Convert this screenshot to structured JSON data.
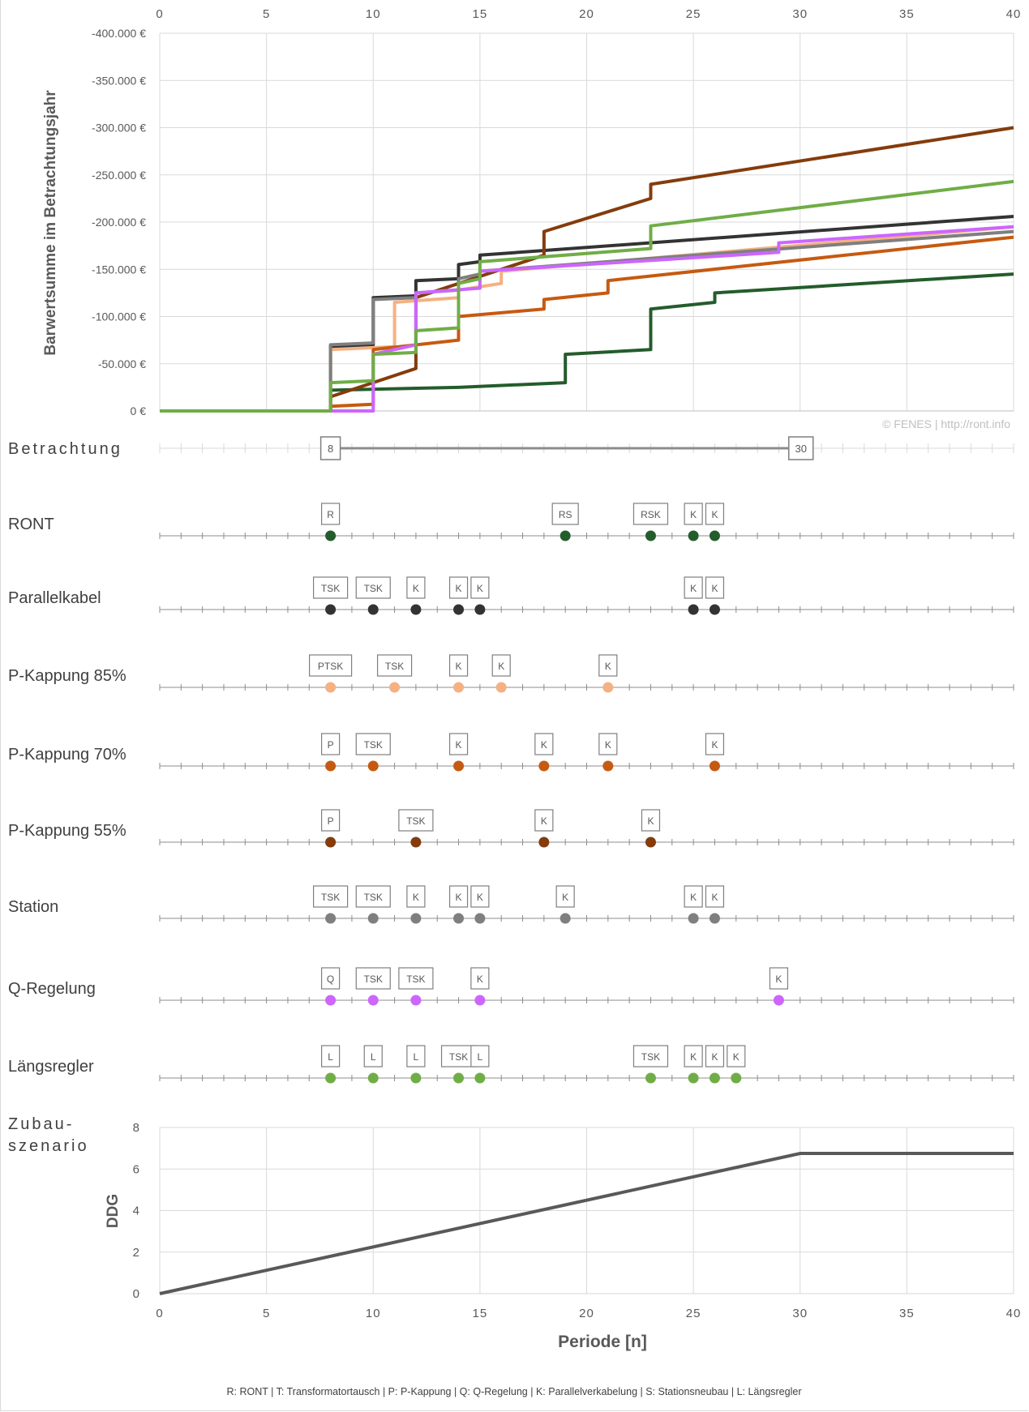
{
  "chart_data": [
    {
      "type": "line",
      "ylabel": "Barwertsumme im Betrachtungsjahr",
      "x_ticks": [
        "0",
        "5",
        "10",
        "15",
        "20",
        "25",
        "30",
        "35",
        "40"
      ],
      "y_ticks": [
        "0 €",
        "-50.000 €",
        "-100.000 €",
        "-150.000 €",
        "-200.000 €",
        "-250.000 €",
        "-300.000 €",
        "-350.000 €",
        "-400.000 €"
      ],
      "xlim": [
        0,
        40
      ],
      "ylim": [
        0,
        -400000
      ],
      "watermark": "© FENES | http://ront.info",
      "series": [
        {
          "color": "#245c2b",
          "points": [
            [
              0,
              0
            ],
            [
              8,
              0
            ],
            [
              8,
              -22000
            ],
            [
              14,
              -25000
            ],
            [
              19,
              -30000
            ],
            [
              19,
              -60000
            ],
            [
              23,
              -65000
            ],
            [
              23,
              -108000
            ],
            [
              26,
              -115000
            ],
            [
              26,
              -125000
            ],
            [
              40,
              -145000
            ]
          ]
        },
        {
          "color": "#333333",
          "points": [
            [
              0,
              0
            ],
            [
              8,
              0
            ],
            [
              8,
              -68000
            ],
            [
              10,
              -70000
            ],
            [
              10,
              -120000
            ],
            [
              12,
              -122000
            ],
            [
              12,
              -138000
            ],
            [
              14,
              -140000
            ],
            [
              14,
              -155000
            ],
            [
              15,
              -158000
            ],
            [
              15,
              -165000
            ],
            [
              40,
              -206000
            ]
          ]
        },
        {
          "color": "#f4b183",
          "points": [
            [
              0,
              0
            ],
            [
              8,
              0
            ],
            [
              8,
              -65000
            ],
            [
              11,
              -68000
            ],
            [
              11,
              -115000
            ],
            [
              14,
              -120000
            ],
            [
              14,
              -128000
            ],
            [
              16,
              -135000
            ],
            [
              16,
              -148000
            ],
            [
              40,
              -195000
            ]
          ]
        },
        {
          "color": "#c65a11",
          "points": [
            [
              0,
              0
            ],
            [
              8,
              0
            ],
            [
              8,
              -5000
            ],
            [
              10,
              -7000
            ],
            [
              10,
              -65000
            ],
            [
              14,
              -75000
            ],
            [
              14,
              -100000
            ],
            [
              18,
              -108000
            ],
            [
              18,
              -118000
            ],
            [
              21,
              -125000
            ],
            [
              21,
              -138000
            ],
            [
              40,
              -184000
            ]
          ]
        },
        {
          "color": "#843c0c",
          "points": [
            [
              0,
              0
            ],
            [
              8,
              0
            ],
            [
              8,
              -15000
            ],
            [
              12,
              -45000
            ],
            [
              12,
              -120000
            ],
            [
              18,
              -165000
            ],
            [
              18,
              -190000
            ],
            [
              23,
              -225000
            ],
            [
              23,
              -240000
            ],
            [
              40,
              -300000
            ]
          ]
        },
        {
          "color": "#7f7f7f",
          "points": [
            [
              0,
              0
            ],
            [
              8,
              0
            ],
            [
              8,
              -70000
            ],
            [
              10,
              -72000
            ],
            [
              10,
              -118000
            ],
            [
              12,
              -120000
            ],
            [
              12,
              -125000
            ],
            [
              14,
              -128000
            ],
            [
              14,
              -140000
            ],
            [
              15,
              -145000
            ],
            [
              15,
              -148000
            ],
            [
              40,
              -190000
            ]
          ]
        },
        {
          "color": "#cc66ff",
          "points": [
            [
              0,
              0
            ],
            [
              10,
              0
            ],
            [
              10,
              -60000
            ],
            [
              12,
              -70000
            ],
            [
              12,
              -125000
            ],
            [
              15,
              -130000
            ],
            [
              15,
              -148000
            ],
            [
              29,
              -168000
            ],
            [
              29,
              -178000
            ],
            [
              40,
              -195000
            ]
          ]
        },
        {
          "color": "#70ad47",
          "points": [
            [
              0,
              0
            ],
            [
              8,
              0
            ],
            [
              8,
              -30000
            ],
            [
              10,
              -32000
            ],
            [
              10,
              -60000
            ],
            [
              12,
              -62000
            ],
            [
              12,
              -85000
            ],
            [
              14,
              -88000
            ],
            [
              14,
              -135000
            ],
            [
              15,
              -140000
            ],
            [
              15,
              -158000
            ],
            [
              23,
              -172000
            ],
            [
              23,
              -196000
            ],
            [
              40,
              -243000
            ]
          ]
        }
      ]
    },
    {
      "type": "timeline",
      "label": "Betrachtung",
      "start": 8,
      "end": 30,
      "start_label": "8",
      "end_label": "30"
    },
    {
      "type": "event-timeline",
      "rows": [
        {
          "name": "RONT",
          "color": "#245c2b",
          "events": [
            {
              "x": 8,
              "label": "R"
            },
            {
              "x": 19,
              "label": "RS"
            },
            {
              "x": 23,
              "label": "RSK"
            },
            {
              "x": 25,
              "label": "K"
            },
            {
              "x": 26,
              "label": "K"
            }
          ]
        },
        {
          "name": "Parallelkabel",
          "color": "#333333",
          "events": [
            {
              "x": 8,
              "label": "TSK"
            },
            {
              "x": 10,
              "label": "TSK"
            },
            {
              "x": 12,
              "label": "K"
            },
            {
              "x": 14,
              "label": "K"
            },
            {
              "x": 15,
              "label": "K"
            },
            {
              "x": 25,
              "label": "K"
            },
            {
              "x": 26,
              "label": "K"
            }
          ]
        },
        {
          "name": "P-Kappung 85%",
          "color": "#f4b183",
          "events": [
            {
              "x": 8,
              "label": "PTSK"
            },
            {
              "x": 11,
              "label": "TSK"
            },
            {
              "x": 14,
              "label": "K"
            },
            {
              "x": 16,
              "label": "K"
            },
            {
              "x": 21,
              "label": "K"
            }
          ]
        },
        {
          "name": "P-Kappung 70%",
          "color": "#c65a11",
          "events": [
            {
              "x": 8,
              "label": "P"
            },
            {
              "x": 10,
              "label": "TSK"
            },
            {
              "x": 14,
              "label": "K"
            },
            {
              "x": 18,
              "label": "K"
            },
            {
              "x": 21,
              "label": "K"
            },
            {
              "x": 26,
              "label": "K"
            }
          ]
        },
        {
          "name": "P-Kappung 55%",
          "color": "#843c0c",
          "events": [
            {
              "x": 8,
              "label": "P"
            },
            {
              "x": 12,
              "label": "TSK"
            },
            {
              "x": 18,
              "label": "K"
            },
            {
              "x": 23,
              "label": "K"
            }
          ]
        },
        {
          "name": "Station",
          "color": "#7f7f7f",
          "events": [
            {
              "x": 8,
              "label": "TSK"
            },
            {
              "x": 10,
              "label": "TSK"
            },
            {
              "x": 12,
              "label": "K"
            },
            {
              "x": 14,
              "label": "K"
            },
            {
              "x": 15,
              "label": "K"
            },
            {
              "x": 19,
              "label": "K"
            },
            {
              "x": 25,
              "label": "K"
            },
            {
              "x": 26,
              "label": "K"
            }
          ]
        },
        {
          "name": "Q-Regelung",
          "color": "#cc66ff",
          "events": [
            {
              "x": 8,
              "label": "Q"
            },
            {
              "x": 10,
              "label": "TSK"
            },
            {
              "x": 12,
              "label": "TSK"
            },
            {
              "x": 15,
              "label": "K"
            },
            {
              "x": 29,
              "label": "K"
            }
          ]
        },
        {
          "name": "Längsregler",
          "color": "#70ad47",
          "events": [
            {
              "x": 8,
              "label": "L"
            },
            {
              "x": 10,
              "label": "L"
            },
            {
              "x": 12,
              "label": "L"
            },
            {
              "x": 14,
              "label": "TSK"
            },
            {
              "x": 15,
              "label": "L"
            },
            {
              "x": 23,
              "label": "TSK"
            },
            {
              "x": 25,
              "label": "K"
            },
            {
              "x": 26,
              "label": "K"
            },
            {
              "x": 27,
              "label": "K"
            }
          ]
        }
      ]
    },
    {
      "type": "line",
      "row_label": "Zubau-\nszenario",
      "xlabel": "Periode [n]",
      "ylabel": "DDG",
      "x_ticks": [
        "0",
        "5",
        "10",
        "15",
        "20",
        "25",
        "30",
        "35",
        "40"
      ],
      "y_ticks": [
        "0",
        "2",
        "4",
        "6",
        "8"
      ],
      "xlim": [
        0,
        40
      ],
      "ylim": [
        0,
        8
      ],
      "series": [
        {
          "color": "#595959",
          "points": [
            [
              0,
              0
            ],
            [
              30,
              6.75
            ],
            [
              40,
              6.75
            ]
          ]
        }
      ]
    }
  ],
  "legend_footer": "R: RONT    |    T: Transformatortausch    |    P: P-Kappung    |    Q: Q-Regelung    |    K: Parallelverkabelung    |    S: Stationsneubau    |    L: Längsregler"
}
